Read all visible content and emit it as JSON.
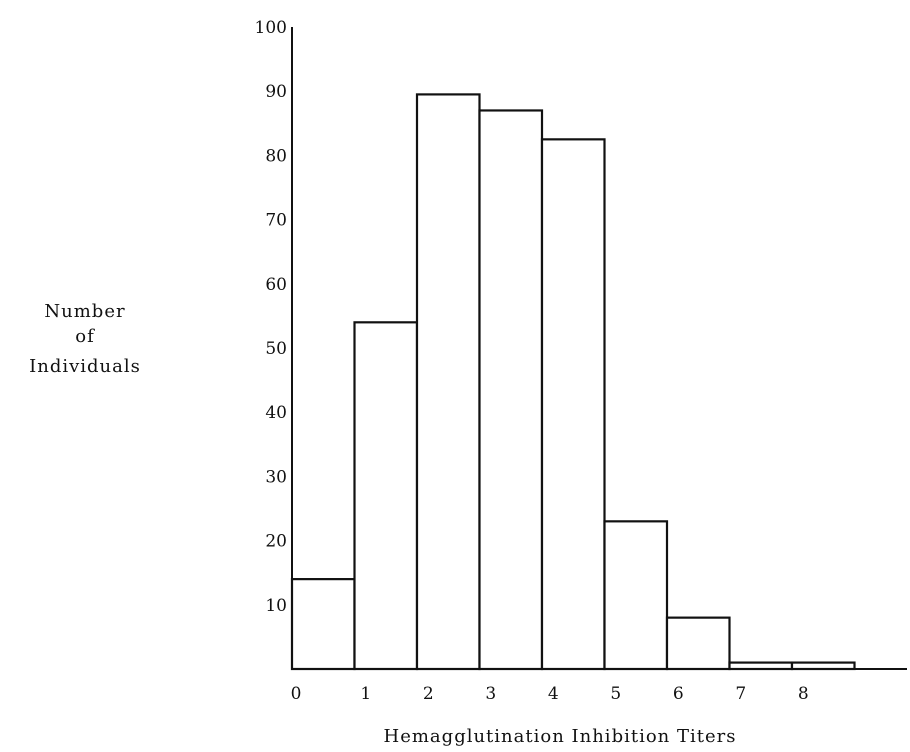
{
  "chart_data": {
    "type": "bar",
    "title": "",
    "xlabel": "Hemagglutination Inhibition Titers",
    "ylabel_lines": [
      "Number",
      "of",
      "Individuals"
    ],
    "categories": [
      "0",
      "1",
      "2",
      "3",
      "4",
      "5",
      "6",
      "7",
      "8"
    ],
    "values": [
      14,
      54,
      89.5,
      87,
      82.5,
      23,
      8,
      1,
      1
    ],
    "yticks": [
      10,
      20,
      30,
      40,
      50,
      60,
      70,
      80,
      90,
      100
    ],
    "ylim": [
      0,
      100
    ],
    "grid": false,
    "legend": "none",
    "colors": {
      "bar_fill": "#ffffff",
      "bar_stroke": "#111111",
      "axis": "#111111",
      "text": "#111111"
    }
  }
}
